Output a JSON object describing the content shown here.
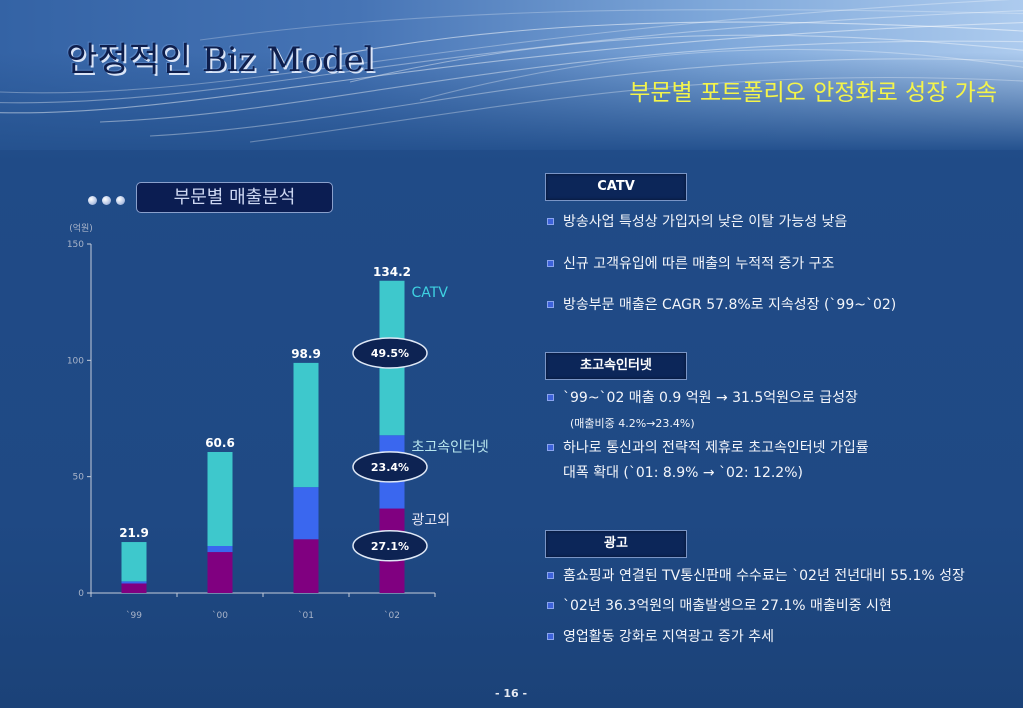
{
  "slide": {
    "title": "안정적인 Biz Model",
    "subtitle": "부문별 포트폴리오 안정화로 성장 가속",
    "page_number": "- 16 -"
  },
  "theme": {
    "background": "#1f4984",
    "title_color": "#0e1e4c",
    "subtitle_color": "#f4f44a",
    "bullet_color": "#3d62da"
  },
  "chart_data": {
    "type": "bar",
    "stacked": true,
    "title": "부문별 매출분석",
    "ylabel": "(억원)",
    "xlabel": "",
    "categories": [
      "`99",
      "`00",
      "`01",
      "`02"
    ],
    "ylim": [
      0,
      150
    ],
    "yticks": [
      0,
      50,
      100,
      150
    ],
    "grid": false,
    "legend": "right",
    "series": [
      {
        "name": "광고외",
        "values": [
          4.1,
          17.6,
          23.1,
          36.3
        ],
        "color": "#800080",
        "label_color": "#e4e4f2"
      },
      {
        "name": "초고속인터넷",
        "values": [
          0.9,
          2.6,
          22.4,
          31.5
        ],
        "color": "#3a67ef",
        "label_color": "#b8e6ee"
      },
      {
        "name": "CATV",
        "values": [
          16.9,
          40.4,
          53.4,
          66.4
        ],
        "color": "#3ec8cc",
        "label_color": "#3fd2e2"
      }
    ],
    "totals": [
      21.9,
      60.6,
      98.9,
      134.2
    ],
    "share_labels": [
      {
        "category": "`02",
        "series": "CATV",
        "text": "49.5%"
      },
      {
        "category": "`02",
        "series": "초고속인터넷",
        "text": "23.4%"
      },
      {
        "category": "`02",
        "series": "광고외",
        "text": "27.1%"
      }
    ]
  },
  "catv": {
    "header": "CATV",
    "bullets": [
      "방송사업 특성상 가입자의 낮은 이탈 가능성 낮음",
      "신규 고객유입에 따른 매출의 누적적 증가 구조",
      "방송부문 매출은 CAGR 57.8%로 지속성장 (`99~`02)"
    ]
  },
  "internet": {
    "header": "초고속인터넷",
    "bullets": [
      {
        "text": "`99~`02 매출 0.9 억원 → 31.5억원으로 급성장",
        "note": "(매출비중 4.2%→23.4%)"
      },
      {
        "text": "하나로 통신과의 전략적 제휴로 초고속인터넷 가입률",
        "continuation": "대폭 확대 (`01: 8.9% → `02: 12.2%)"
      }
    ]
  },
  "ads": {
    "header": "광고",
    "bullets": [
      "홈쇼핑과 연결된 TV통신판매 수수료는 `02년 전년대비 55.1% 성장",
      "`02년 36.3억원의 매출발생으로 27.1% 매출비중 시현",
      "영업활동 강화로 지역광고 증가 추세"
    ]
  }
}
